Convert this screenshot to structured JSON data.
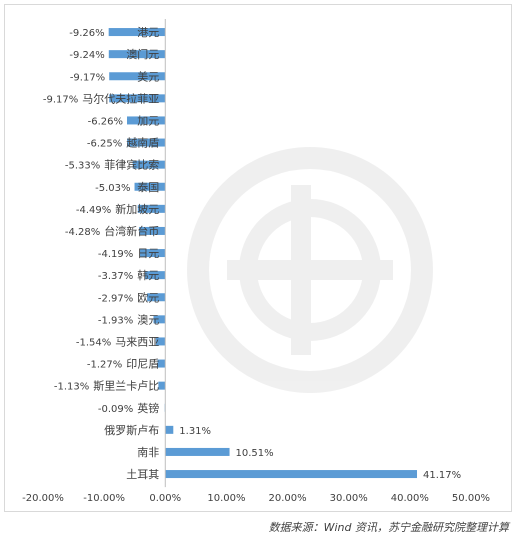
{
  "chart_data": {
    "type": "bar",
    "orientation": "horizontal",
    "categories": [
      "港元",
      "澳门元",
      "美元",
      "马尔代夫拉菲亚",
      "加元",
      "越南盾",
      "菲律宾比索",
      "泰国",
      "新加坡元",
      "台湾新台币",
      "日元",
      "韩元",
      "欧元",
      "澳元",
      "马来西亚",
      "印尼盾",
      "斯里兰卡卢比",
      "英镑",
      "俄罗斯卢布",
      "南非",
      "土耳其"
    ],
    "values": [
      -9.26,
      -9.24,
      -9.17,
      -9.17,
      -6.26,
      -6.25,
      -5.33,
      -5.03,
      -4.49,
      -4.28,
      -4.19,
      -3.37,
      -2.97,
      -1.93,
      -1.54,
      -1.27,
      -1.13,
      -0.09,
      1.31,
      10.51,
      41.17
    ],
    "data_labels": [
      "-9.26%",
      "-9.24%",
      "-9.17%",
      "-9.17%",
      "-6.26%",
      "-6.25%",
      "-5.33%",
      "-5.03%",
      "-4.49%",
      "-4.28%",
      "-4.19%",
      "-3.37%",
      "-2.97%",
      "-1.93%",
      "-1.54%",
      "-1.27%",
      "-1.13%",
      "-0.09%",
      "1.31%",
      "10.51%",
      "41.17%"
    ],
    "x_ticks": [
      "-20.00%",
      "-10.00%",
      "0.00%",
      "10.00%",
      "20.00%",
      "30.00%",
      "40.00%",
      "50.00%"
    ],
    "xlim": [
      -20,
      50
    ],
    "grid": false,
    "bar_color": "#5b9bd5"
  },
  "source_note": "数据来源：Wind 资讯，苏宁金融研究院整理计算"
}
